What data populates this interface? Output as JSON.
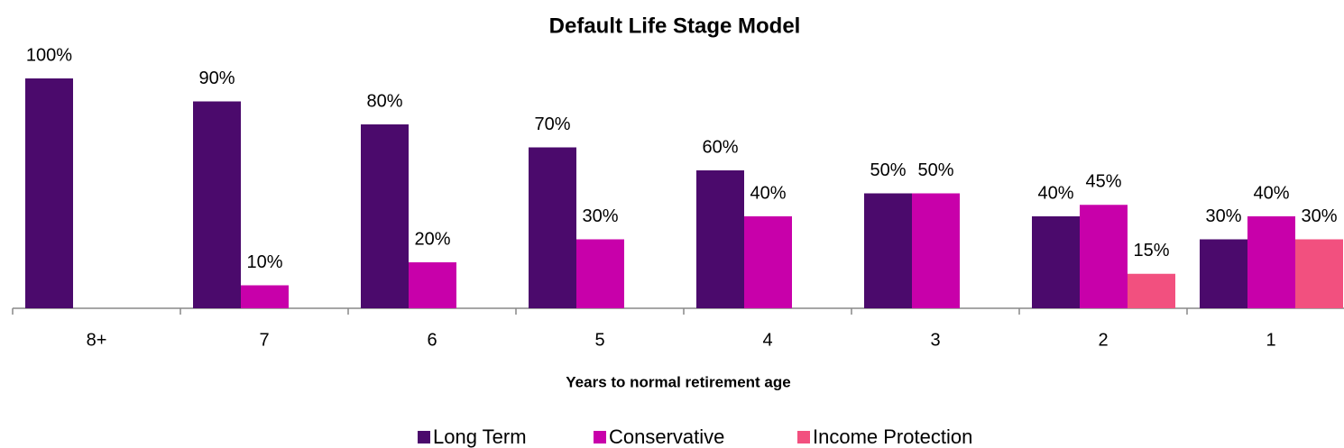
{
  "chart_data": {
    "type": "bar",
    "title": "Default Life Stage Model",
    "x_label": "Years to normal retirement age",
    "categories": [
      "8+",
      "7",
      "6",
      "5",
      "4",
      "3",
      "2",
      "1"
    ],
    "series": [
      {
        "name": "Long Term",
        "color": "#4b0a6c",
        "values": [
          100,
          90,
          80,
          70,
          60,
          50,
          40,
          30
        ],
        "value_labels": [
          "100%",
          "90%",
          "80%",
          "70%",
          "60%",
          "50%",
          "40%",
          "30%"
        ]
      },
      {
        "name": "Conservative",
        "color": "#c800aa",
        "values": [
          null,
          10,
          20,
          30,
          40,
          50,
          45,
          40
        ],
        "value_labels": [
          null,
          "10%",
          "20%",
          "30%",
          "40%",
          "50%",
          "45%",
          "40%"
        ]
      },
      {
        "name": "Income Protection",
        "color": "#f2507f",
        "values": [
          null,
          null,
          null,
          null,
          null,
          null,
          15,
          30
        ],
        "value_labels": [
          null,
          null,
          null,
          null,
          null,
          null,
          "15%",
          "30%"
        ]
      }
    ],
    "legend": "bottom"
  }
}
